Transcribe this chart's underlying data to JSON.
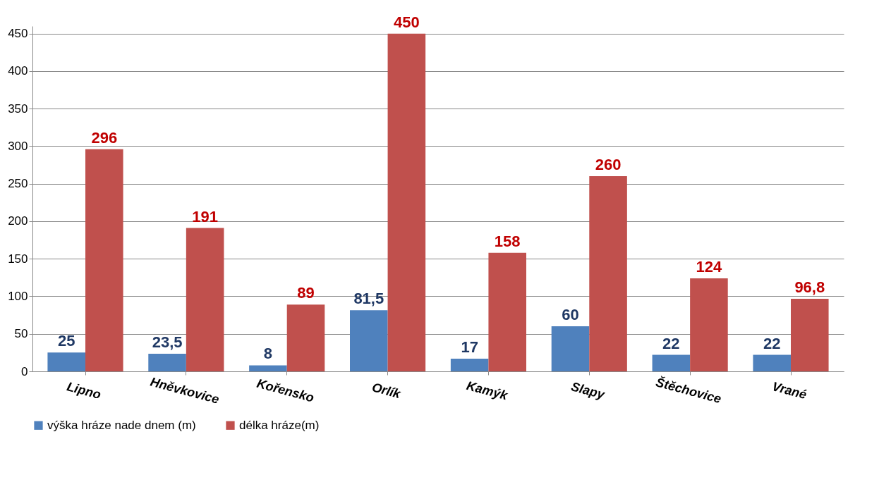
{
  "chart_data": {
    "type": "bar",
    "categories": [
      "Lipno",
      "Hněvkovice",
      "Kořensko",
      "Orlík",
      "Kamýk",
      "Slapy",
      "Štěchovice",
      "Vrané"
    ],
    "series": [
      {
        "name": "výška hráze nade dnem (m)",
        "color": "#4f81bd",
        "values": [
          25,
          23.5,
          8,
          81.5,
          17,
          60,
          22,
          22
        ],
        "value_labels": [
          "25",
          "23,5",
          "8",
          "81,5",
          "17",
          "60",
          "22",
          "22"
        ]
      },
      {
        "name": "délka hráze(m)",
        "color": "#c0504d",
        "values": [
          296,
          191,
          89,
          450,
          158,
          260,
          124,
          96.8
        ],
        "value_labels": [
          "296",
          "191",
          "89",
          "450",
          "158",
          "260",
          "124",
          "96,8"
        ]
      }
    ],
    "ylim": [
      0,
      460
    ],
    "yticks": [
      0,
      50,
      100,
      150,
      200,
      250,
      300,
      350,
      400,
      450
    ],
    "grid": true,
    "legend": "bottom"
  }
}
